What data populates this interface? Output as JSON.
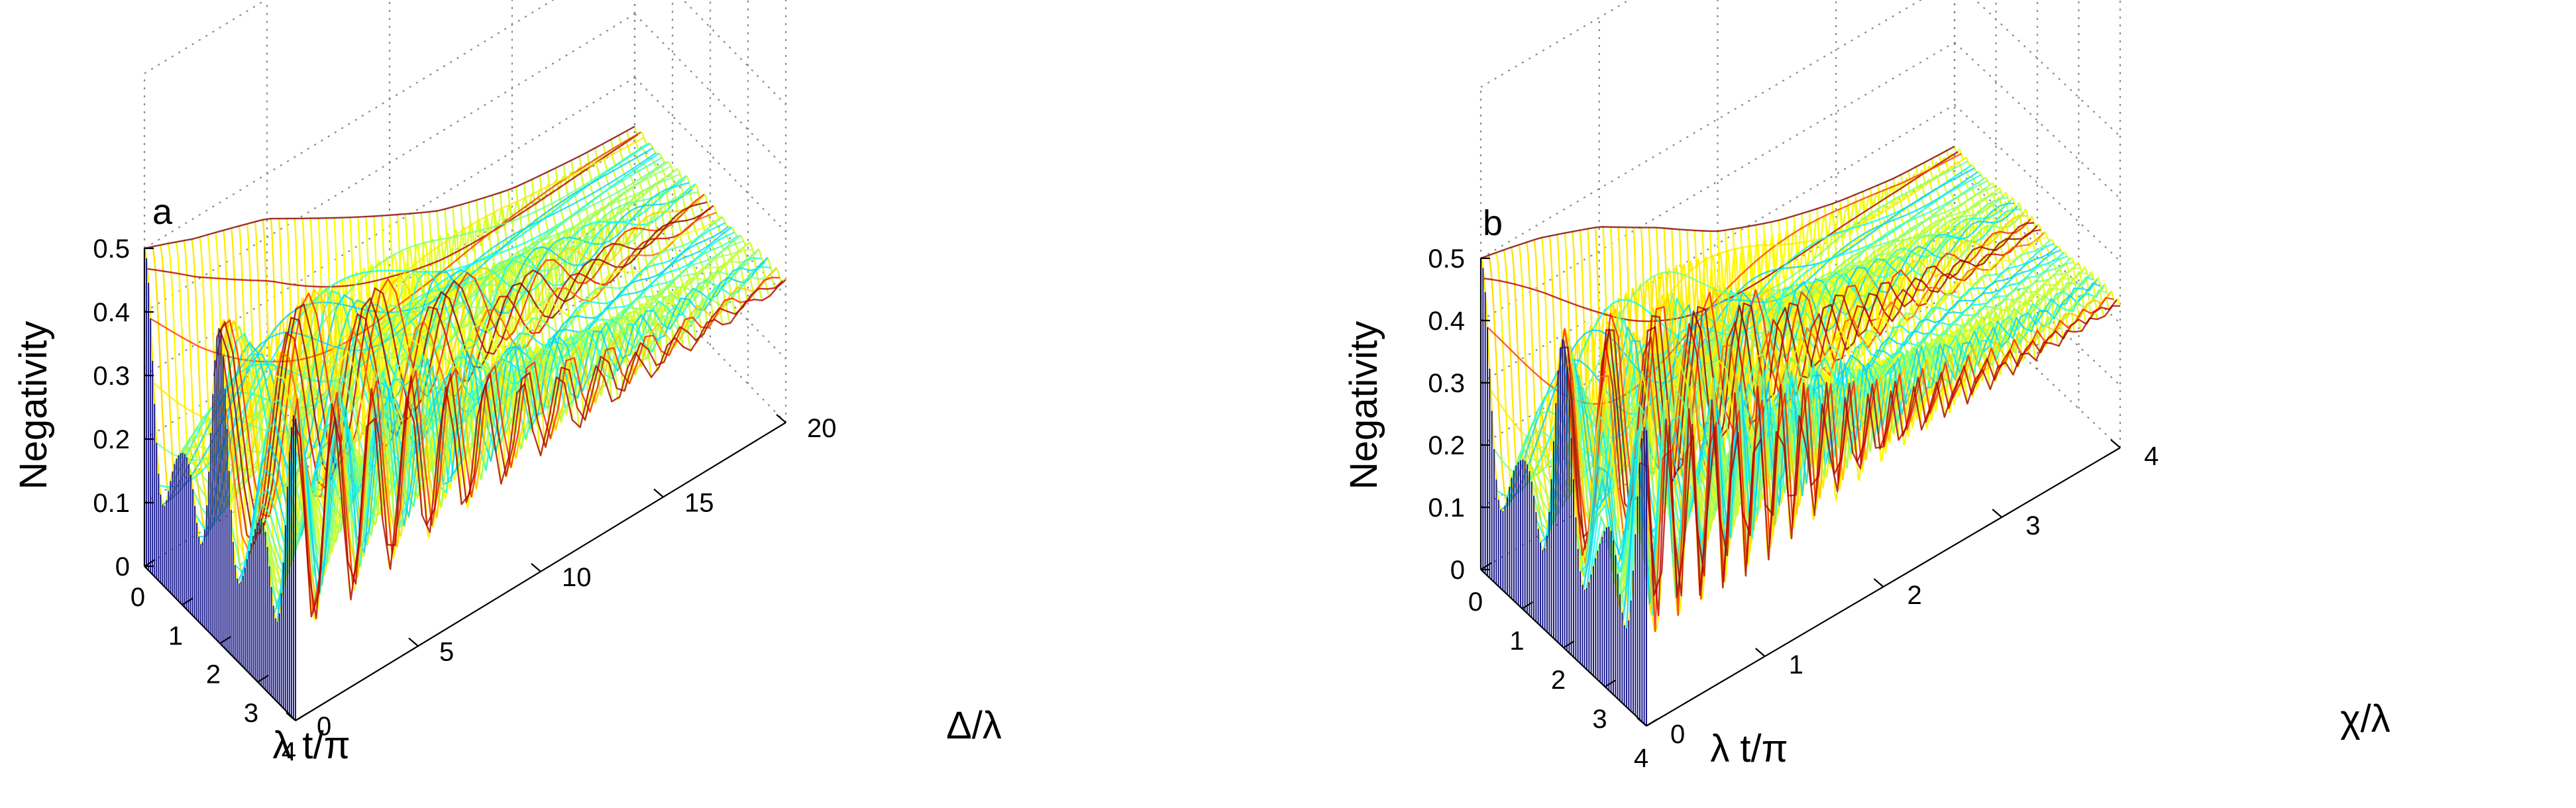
{
  "chart_data": [
    {
      "type": "surface-3d",
      "panel": "a",
      "zlabel": "Negativity",
      "xlabel": "λ t/π",
      "ylabel": "Δ/λ",
      "xlim": [
        0,
        4
      ],
      "ylim": [
        0,
        20
      ],
      "zlim": [
        0,
        0.5
      ],
      "xticks": [
        "0",
        "1",
        "2",
        "3",
        "4"
      ],
      "yticks": [
        "0",
        "5",
        "10",
        "15",
        "20"
      ],
      "zticks": [
        "0",
        "0.1",
        "0.2",
        "0.3",
        "0.4",
        "0.5"
      ],
      "grid": true,
      "colormap": "jet",
      "envelope": {
        "y": [
          0,
          2,
          5,
          8,
          10,
          12,
          15,
          18,
          20
        ],
        "max_negativity": [
          0.5,
          0.47,
          0.44,
          0.38,
          0.34,
          0.3,
          0.26,
          0.24,
          0.23
        ],
        "min_negativity": [
          0.0,
          0.02,
          0.06,
          0.1,
          0.13,
          0.15,
          0.18,
          0.2,
          0.21
        ]
      }
    },
    {
      "type": "surface-3d",
      "panel": "b",
      "zlabel": "Negativity",
      "xlabel": "λ t/π",
      "ylabel": "χ/λ",
      "xlim": [
        0,
        4
      ],
      "ylim": [
        0,
        4
      ],
      "zlim": [
        0,
        0.5
      ],
      "xticks": [
        "0",
        "1",
        "2",
        "3",
        "4"
      ],
      "yticks": [
        "0",
        "1",
        "2",
        "3",
        "4"
      ],
      "zticks": [
        "0",
        "0.1",
        "0.2",
        "0.3",
        "0.4",
        "0.5"
      ],
      "grid": true,
      "colormap": "jet",
      "envelope": {
        "y": [
          0,
          0.5,
          1,
          1.5,
          2,
          2.5,
          3,
          3.5,
          4
        ],
        "max_negativity": [
          0.5,
          0.48,
          0.45,
          0.4,
          0.34,
          0.3,
          0.27,
          0.25,
          0.24
        ],
        "min_negativity": [
          0.0,
          0.02,
          0.05,
          0.1,
          0.15,
          0.18,
          0.2,
          0.21,
          0.22
        ]
      }
    }
  ]
}
